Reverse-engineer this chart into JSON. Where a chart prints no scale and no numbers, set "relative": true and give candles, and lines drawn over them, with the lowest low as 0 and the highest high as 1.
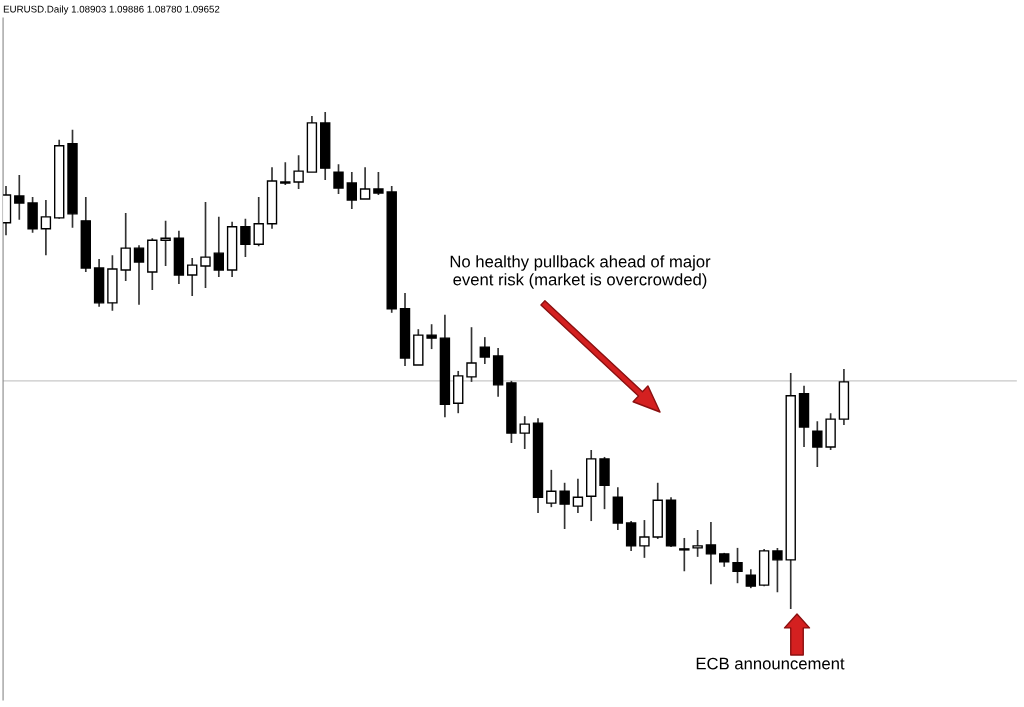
{
  "chart_data": {
    "type": "candlestick",
    "title": "EURUSD.Daily 1.08903 1.09886 1.08780 1.09652",
    "relative": true,
    "categories": [
      null,
      null,
      null,
      null,
      null,
      null,
      null,
      null,
      null,
      null,
      null,
      null,
      null,
      null,
      null,
      null,
      null,
      null,
      null,
      null,
      null,
      null,
      null,
      null,
      null,
      null,
      null,
      null,
      null,
      null,
      null,
      null,
      null,
      null,
      null,
      null,
      null,
      null,
      null,
      null,
      null,
      null,
      null,
      null,
      null,
      null,
      null,
      null,
      null,
      null,
      null,
      null,
      null,
      null,
      null,
      null,
      null,
      null,
      null,
      null,
      null,
      null,
      null,
      null
    ],
    "ohlc": [
      [
        0.777,
        0.851,
        0.752,
        0.833
      ],
      [
        0.831,
        0.873,
        0.783,
        0.817
      ],
      [
        0.817,
        0.829,
        0.757,
        0.765
      ],
      [
        0.765,
        0.823,
        0.712,
        0.789
      ],
      [
        0.787,
        0.944,
        0.785,
        0.932
      ],
      [
        0.936,
        0.964,
        0.767,
        0.795
      ],
      [
        0.781,
        0.829,
        0.678,
        0.686
      ],
      [
        0.686,
        0.704,
        0.608,
        0.616
      ],
      [
        0.616,
        0.712,
        0.6,
        0.684
      ],
      [
        0.682,
        0.797,
        0.66,
        0.726
      ],
      [
        0.726,
        0.732,
        0.612,
        0.698
      ],
      [
        0.678,
        0.746,
        0.642,
        0.742
      ],
      [
        0.742,
        0.781,
        0.69,
        0.746
      ],
      [
        0.746,
        0.761,
        0.654,
        0.672
      ],
      [
        0.672,
        0.706,
        0.63,
        0.692
      ],
      [
        0.69,
        0.819,
        0.646,
        0.708
      ],
      [
        0.716,
        0.789,
        0.668,
        0.682
      ],
      [
        0.682,
        0.779,
        0.668,
        0.769
      ],
      [
        0.769,
        0.785,
        0.708,
        0.734
      ],
      [
        0.734,
        0.829,
        0.73,
        0.775
      ],
      [
        0.775,
        0.889,
        0.765,
        0.861
      ],
      [
        0.859,
        0.899,
        0.853,
        0.857
      ],
      [
        0.859,
        0.913,
        0.845,
        0.881
      ],
      [
        0.879,
        0.992,
        0.879,
        0.978
      ],
      [
        0.978,
        1,
        0.863,
        0.887
      ],
      [
        0.879,
        0.895,
        0.835,
        0.847
      ],
      [
        0.857,
        0.879,
        0.805,
        0.823
      ],
      [
        0.825,
        0.889,
        0.825,
        0.845
      ],
      [
        0.845,
        0.879,
        0.833,
        0.837
      ],
      [
        0.839,
        0.851,
        0.596,
        0.604
      ],
      [
        0.604,
        0.636,
        0.489,
        0.505
      ],
      [
        0.491,
        0.563,
        0.491,
        0.551
      ],
      [
        0.551,
        0.573,
        0.523,
        0.545
      ],
      [
        0.545,
        0.592,
        0.386,
        0.412
      ],
      [
        0.414,
        0.479,
        0.394,
        0.469
      ],
      [
        0.467,
        0.567,
        0.457,
        0.495
      ],
      [
        0.527,
        0.547,
        0.493,
        0.507
      ],
      [
        0.509,
        0.525,
        0.427,
        0.451
      ],
      [
        0.455,
        0.459,
        0.334,
        0.354
      ],
      [
        0.354,
        0.388,
        0.322,
        0.372
      ],
      [
        0.374,
        0.384,
        0.193,
        0.225
      ],
      [
        0.213,
        0.28,
        0.205,
        0.237
      ],
      [
        0.237,
        0.254,
        0.161,
        0.211
      ],
      [
        0.207,
        0.262,
        0.193,
        0.225
      ],
      [
        0.227,
        0.32,
        0.177,
        0.302
      ],
      [
        0.302,
        0.306,
        0.201,
        0.249
      ],
      [
        0.225,
        0.245,
        0.159,
        0.173
      ],
      [
        0.173,
        0.177,
        0.117,
        0.127
      ],
      [
        0.127,
        0.179,
        0.103,
        0.145
      ],
      [
        0.145,
        0.254,
        0.141,
        0.219
      ],
      [
        0.219,
        0.225,
        0.125,
        0.127
      ],
      [
        0.121,
        0.143,
        0.076,
        0.119
      ],
      [
        0.123,
        0.159,
        0.105,
        0.127
      ],
      [
        0.129,
        0.175,
        0.05,
        0.111
      ],
      [
        0.111,
        0.113,
        0.085,
        0.095
      ],
      [
        0.093,
        0.123,
        0.052,
        0.076
      ],
      [
        0.068,
        0.08,
        0.042,
        0.046
      ],
      [
        0.048,
        0.121,
        0.046,
        0.117
      ],
      [
        0.117,
        0.123,
        0.034,
        0.099
      ],
      [
        0.099,
        0.475,
        0,
        0.429
      ],
      [
        0.433,
        0.449,
        0.326,
        0.366
      ],
      [
        0.358,
        0.378,
        0.286,
        0.326
      ],
      [
        0.326,
        0.394,
        0.32,
        0.382
      ],
      [
        0.382,
        0.483,
        0.37,
        0.457
      ]
    ],
    "ref_lines": [
      {
        "axis": "y",
        "value": 0.459,
        "color": "#c8c8c8"
      }
    ],
    "annotations": [
      "No healthy pullback ahead of major\nevent risk (market is overcrowded)",
      "ECB announcement"
    ],
    "grid": false,
    "legend": false
  }
}
